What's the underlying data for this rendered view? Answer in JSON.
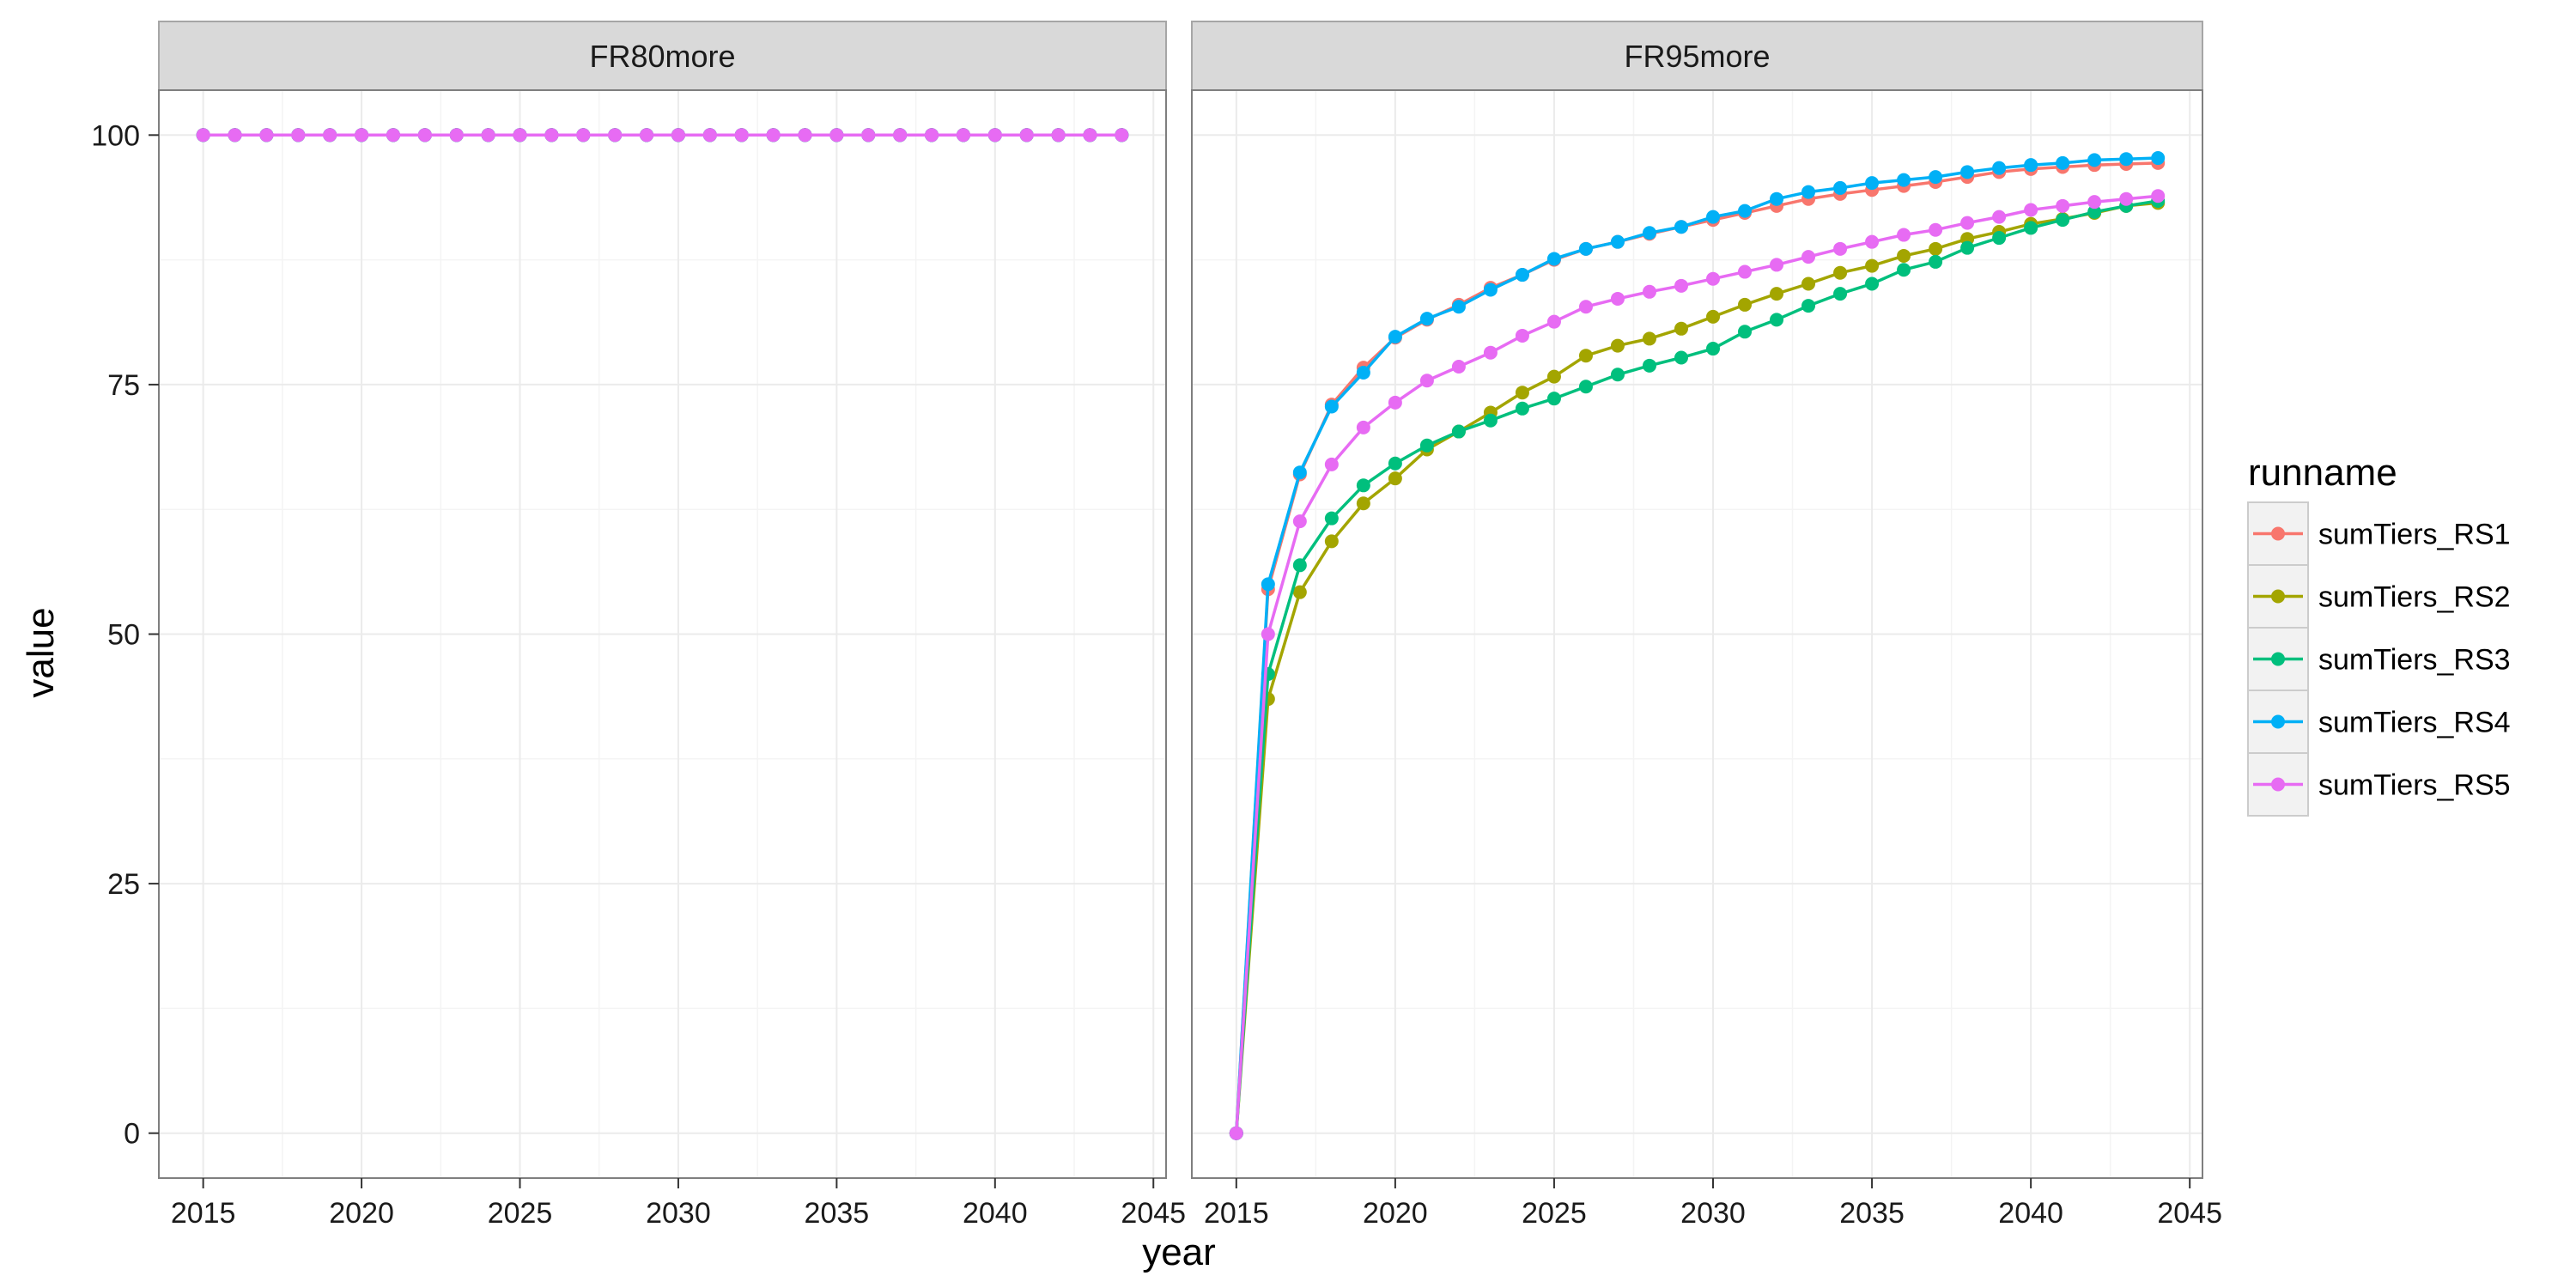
{
  "chart_data": {
    "type": "line",
    "xlabel": "year",
    "ylabel": "value",
    "xlim": [
      2013.6,
      2045.4
    ],
    "ylim": [
      -4.5,
      104.5
    ],
    "xticks": [
      2015,
      2020,
      2025,
      2030,
      2035,
      2040,
      2045
    ],
    "yticks": [
      0,
      25,
      50,
      75,
      100
    ],
    "xtick_labels": [
      "2015",
      "2020",
      "2025",
      "2030",
      "2035",
      "2040",
      "2045"
    ],
    "ytick_labels": [
      "0",
      "25",
      "50",
      "75",
      "100"
    ],
    "grid": true,
    "legend": {
      "title": "runname",
      "position": "right",
      "entries": [
        "sumTiers_RS1",
        "sumTiers_RS2",
        "sumTiers_RS3",
        "sumTiers_RS4",
        "sumTiers_RS5"
      ]
    },
    "colors": {
      "sumTiers_RS1": "#F8766D",
      "sumTiers_RS2": "#A3A500",
      "sumTiers_RS3": "#00BF7D",
      "sumTiers_RS4": "#00B0F6",
      "sumTiers_RS5": "#E76BF3"
    },
    "x": [
      2015,
      2016,
      2017,
      2018,
      2019,
      2020,
      2021,
      2022,
      2023,
      2024,
      2025,
      2026,
      2027,
      2028,
      2029,
      2030,
      2031,
      2032,
      2033,
      2034,
      2035,
      2036,
      2037,
      2038,
      2039,
      2040,
      2041,
      2042,
      2043,
      2044
    ],
    "panels": [
      {
        "label": "FR80more",
        "series": [
          {
            "name": "sumTiers_RS1",
            "values": [
              100,
              100,
              100,
              100,
              100,
              100,
              100,
              100,
              100,
              100,
              100,
              100,
              100,
              100,
              100,
              100,
              100,
              100,
              100,
              100,
              100,
              100,
              100,
              100,
              100,
              100,
              100,
              100,
              100,
              100
            ]
          },
          {
            "name": "sumTiers_RS2",
            "values": [
              100,
              100,
              100,
              100,
              100,
              100,
              100,
              100,
              100,
              100,
              100,
              100,
              100,
              100,
              100,
              100,
              100,
              100,
              100,
              100,
              100,
              100,
              100,
              100,
              100,
              100,
              100,
              100,
              100,
              100
            ]
          },
          {
            "name": "sumTiers_RS3",
            "values": [
              100,
              100,
              100,
              100,
              100,
              100,
              100,
              100,
              100,
              100,
              100,
              100,
              100,
              100,
              100,
              100,
              100,
              100,
              100,
              100,
              100,
              100,
              100,
              100,
              100,
              100,
              100,
              100,
              100,
              100
            ]
          },
          {
            "name": "sumTiers_RS4",
            "values": [
              100,
              100,
              100,
              100,
              100,
              100,
              100,
              100,
              100,
              100,
              100,
              100,
              100,
              100,
              100,
              100,
              100,
              100,
              100,
              100,
              100,
              100,
              100,
              100,
              100,
              100,
              100,
              100,
              100,
              100
            ]
          },
          {
            "name": "sumTiers_RS5",
            "values": [
              100,
              100,
              100,
              100,
              100,
              100,
              100,
              100,
              100,
              100,
              100,
              100,
              100,
              100,
              100,
              100,
              100,
              100,
              100,
              100,
              100,
              100,
              100,
              100,
              100,
              100,
              100,
              100,
              100,
              100
            ]
          }
        ]
      },
      {
        "label": "FR95more",
        "series": [
          {
            "name": "sumTiers_RS1",
            "values": [
              0,
              54.5,
              66,
              73,
              76.7,
              79.7,
              81.5,
              83,
              84.7,
              86,
              87.5,
              88.6,
              89.3,
              90.1,
              90.8,
              91.5,
              92.2,
              92.9,
              93.6,
              94.1,
              94.5,
              94.9,
              95.3,
              95.8,
              96.3,
              96.6,
              96.8,
              97,
              97.1,
              97.2
            ]
          },
          {
            "name": "sumTiers_RS2",
            "values": [
              0,
              43.5,
              54.2,
              59.3,
              63.1,
              65.6,
              68.5,
              70.3,
              72.2,
              74.2,
              75.8,
              77.9,
              78.9,
              79.6,
              80.6,
              81.8,
              83,
              84.1,
              85.1,
              86.2,
              86.9,
              87.9,
              88.6,
              89.6,
              90.3,
              91.1,
              91.6,
              92.2,
              92.9,
              93.2
            ]
          },
          {
            "name": "sumTiers_RS3",
            "values": [
              0,
              46,
              56.9,
              61.6,
              64.9,
              67.1,
              68.9,
              70.3,
              71.4,
              72.6,
              73.6,
              74.8,
              76,
              76.9,
              77.7,
              78.6,
              80.3,
              81.5,
              82.9,
              84.1,
              85.1,
              86.5,
              87.3,
              88.7,
              89.7,
              90.7,
              91.5,
              92.3,
              92.9,
              93.4
            ]
          },
          {
            "name": "sumTiers_RS4",
            "values": [
              0,
              55,
              66.2,
              72.8,
              76.2,
              79.8,
              81.6,
              82.8,
              84.5,
              86,
              87.6,
              88.6,
              89.3,
              90.2,
              90.8,
              91.8,
              92.4,
              93.6,
              94.3,
              94.7,
              95.2,
              95.5,
              95.8,
              96.3,
              96.7,
              97,
              97.2,
              97.5,
              97.6,
              97.7
            ]
          },
          {
            "name": "sumTiers_RS5",
            "values": [
              0,
              50,
              61.3,
              67,
              70.7,
              73.2,
              75.4,
              76.8,
              78.2,
              79.9,
              81.3,
              82.8,
              83.6,
              84.3,
              84.9,
              85.6,
              86.3,
              87,
              87.8,
              88.6,
              89.3,
              90,
              90.5,
              91.2,
              91.8,
              92.5,
              92.9,
              93.3,
              93.6,
              93.9
            ]
          }
        ]
      }
    ]
  }
}
